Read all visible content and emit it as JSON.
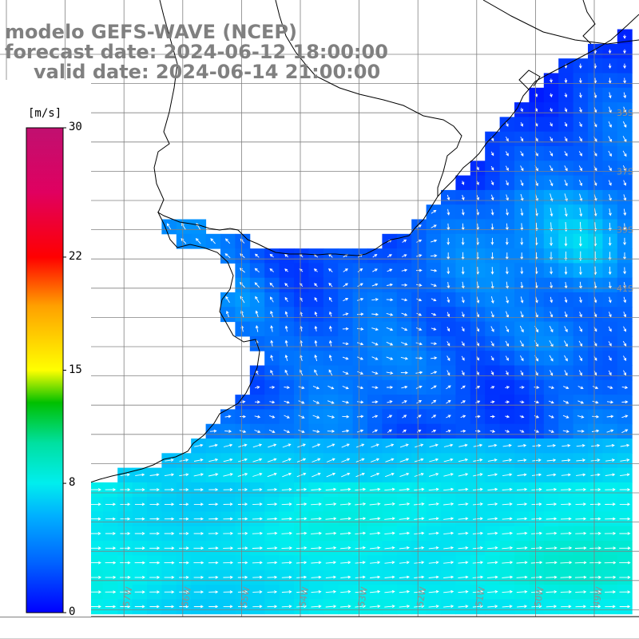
{
  "title": {
    "line1": "modelo GEFS-WAVE (NCEP)",
    "line2": "forecast date: 2024-06-12 18:00:00",
    "line3": "valid date: 2024-06-14 21:00:00"
  },
  "colorbar": {
    "units": "[m/s]",
    "ticks": [
      "30",
      "22",
      "15",
      "8",
      "0"
    ],
    "tick_values": [
      30,
      22,
      15,
      8,
      0
    ],
    "range": [
      0,
      30
    ],
    "colors": [
      "#0000ff",
      "#0060ff",
      "#00b0ff",
      "#00eeee",
      "#00e0a0",
      "#00c000",
      "#80e000",
      "#ffff00",
      "#ffa000",
      "#ff4000",
      "#ff0000",
      "#e00060",
      "#c01070"
    ]
  },
  "map": {
    "variable": "wind",
    "longitudes": [
      -59,
      -58,
      -57,
      -56,
      -55,
      -54,
      -53,
      -52,
      -51,
      -50,
      -49
    ],
    "latitudes": [
      -33,
      -34,
      -35,
      -36,
      -37,
      -38,
      -39,
      -40,
      -41,
      -42,
      -43,
      -44,
      -45,
      -46,
      -47,
      -48,
      -49,
      -50,
      -51,
      -52,
      -53,
      -54
    ],
    "visible_lon_labels": [
      "59W",
      "58W",
      "57W",
      "56W",
      "55W",
      "54W",
      "53W",
      "52W",
      "51W",
      "50W",
      "49W"
    ],
    "visible_lat_labels": [
      "35S",
      "37S",
      "39S",
      "41S"
    ],
    "colors": {
      "land": "#ffffff",
      "coast": "#000000",
      "grid": "#808080",
      "arrows": "#ffffff",
      "title": "#808080"
    }
  }
}
